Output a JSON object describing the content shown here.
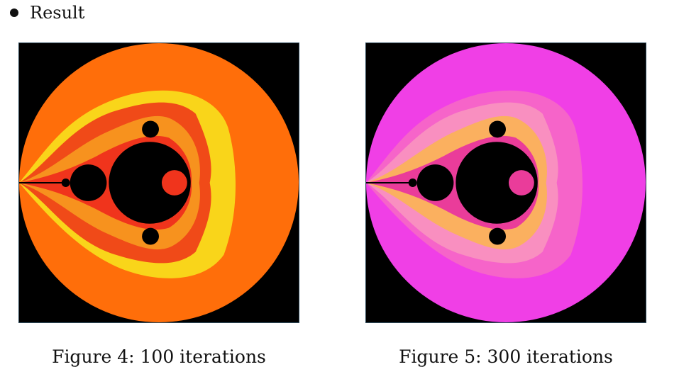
{
  "bullet": {
    "text": "Result"
  },
  "figures": [
    {
      "caption": "Figure 4:  100 iterations",
      "palette": {
        "background": "#000000",
        "outer": "#ff6e0a",
        "mid": "#f9d51a",
        "band1": "#f04a18",
        "band2": "#f7921e",
        "band3": "#f0341c",
        "set": "#000000"
      }
    },
    {
      "caption": "Figure 5:  300 iterations",
      "palette": {
        "background": "#000000",
        "outer": "#f03fe6",
        "mid": "#f664c9",
        "band1": "#f98fc0",
        "band2": "#fbb05f",
        "band3": "#ea3c9a",
        "set": "#000000"
      }
    }
  ]
}
